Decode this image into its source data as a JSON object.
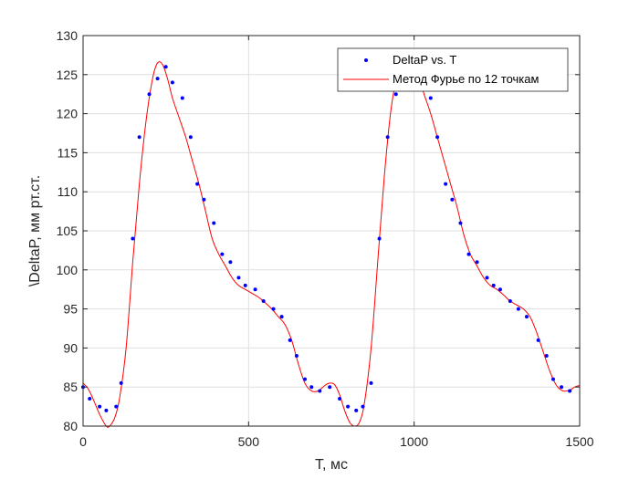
{
  "chart_data": {
    "type": "line",
    "title": "",
    "xlabel": "T, мс",
    "ylabel": "\\DeltaP, мм рт.ст.",
    "xlim": [
      0,
      1500
    ],
    "ylim": [
      80,
      130
    ],
    "xticks": [
      0,
      500,
      1000,
      1500
    ],
    "yticks": [
      80,
      85,
      90,
      95,
      100,
      105,
      110,
      115,
      120,
      125,
      130
    ],
    "grid": true,
    "legend_position": "top-right",
    "series": [
      {
        "name": "DeltaP vs. T",
        "style": "points",
        "color": "#0000ff",
        "x": [
          0,
          20,
          50,
          70,
          100,
          115,
          150,
          170,
          200,
          225,
          250,
          270,
          300,
          325,
          345,
          365,
          395,
          420,
          445,
          470,
          490,
          520,
          545,
          575,
          600,
          625,
          645,
          670,
          690,
          715,
          745,
          775,
          800,
          825,
          845,
          870,
          895,
          920,
          945,
          975,
          1000,
          1025,
          1050,
          1070,
          1095,
          1115,
          1140,
          1165,
          1190,
          1220,
          1240,
          1260,
          1290,
          1315,
          1340,
          1375,
          1400,
          1420,
          1445,
          1470
        ],
        "y": [
          85,
          83.5,
          82.5,
          82,
          82.5,
          85.5,
          104,
          117,
          122.5,
          124.5,
          126,
          124,
          122,
          117,
          111,
          109,
          106,
          102,
          101,
          99,
          98,
          97.5,
          96,
          95,
          94,
          91,
          89,
          86,
          85,
          84.5,
          85,
          83.5,
          82.5,
          82,
          82.5,
          85.5,
          104,
          117,
          122.5,
          124.5,
          126,
          124,
          122,
          117,
          111,
          109,
          106,
          102,
          101,
          99,
          98,
          97.5,
          96,
          95,
          94,
          91,
          89,
          86,
          85,
          84.5
        ]
      },
      {
        "name": "Метод Фурье по 12 точкам",
        "style": "line",
        "color": "#ff0000",
        "x": [
          0,
          15,
          30,
          50,
          70,
          80,
          95,
          110,
          130,
          150,
          170,
          190,
          210,
          225,
          240,
          255,
          270,
          290,
          310,
          330,
          350,
          370,
          390,
          410,
          430,
          450,
          470,
          490,
          510,
          530,
          550,
          570,
          590,
          610,
          630,
          650,
          670,
          690,
          710,
          730,
          745,
          760,
          775,
          790,
          805,
          820,
          835,
          850,
          870,
          890,
          910,
          930,
          950,
          970,
          985,
          1000,
          1015,
          1030,
          1050,
          1070,
          1090,
          1110,
          1130,
          1150,
          1170,
          1190,
          1210,
          1230,
          1250,
          1270,
          1290,
          1310,
          1330,
          1350,
          1370,
          1390,
          1410,
          1430,
          1450,
          1470,
          1485,
          1500
        ],
        "y": [
          85.5,
          84.8,
          83.5,
          81.5,
          80,
          80,
          81,
          83.5,
          90,
          101,
          111,
          119,
          124.5,
          126.5,
          126.3,
          124.5,
          122,
          119.5,
          117,
          114,
          111,
          107.5,
          104,
          102,
          100.5,
          99,
          98,
          97.5,
          97,
          96.5,
          95.8,
          95,
          94,
          93,
          91,
          88,
          85.5,
          84.5,
          84.5,
          85.2,
          85.5,
          85.3,
          84,
          82,
          80.5,
          80,
          80.5,
          83,
          90,
          101,
          112,
          120.5,
          125,
          126.8,
          126.7,
          126,
          124.5,
          122.5,
          120,
          117,
          114,
          111,
          108,
          104.5,
          102,
          100.5,
          99,
          98,
          97.5,
          96.8,
          96,
          95.5,
          95,
          94,
          92,
          89.5,
          87,
          85.2,
          84.5,
          84.6,
          85,
          85.2
        ]
      }
    ]
  }
}
